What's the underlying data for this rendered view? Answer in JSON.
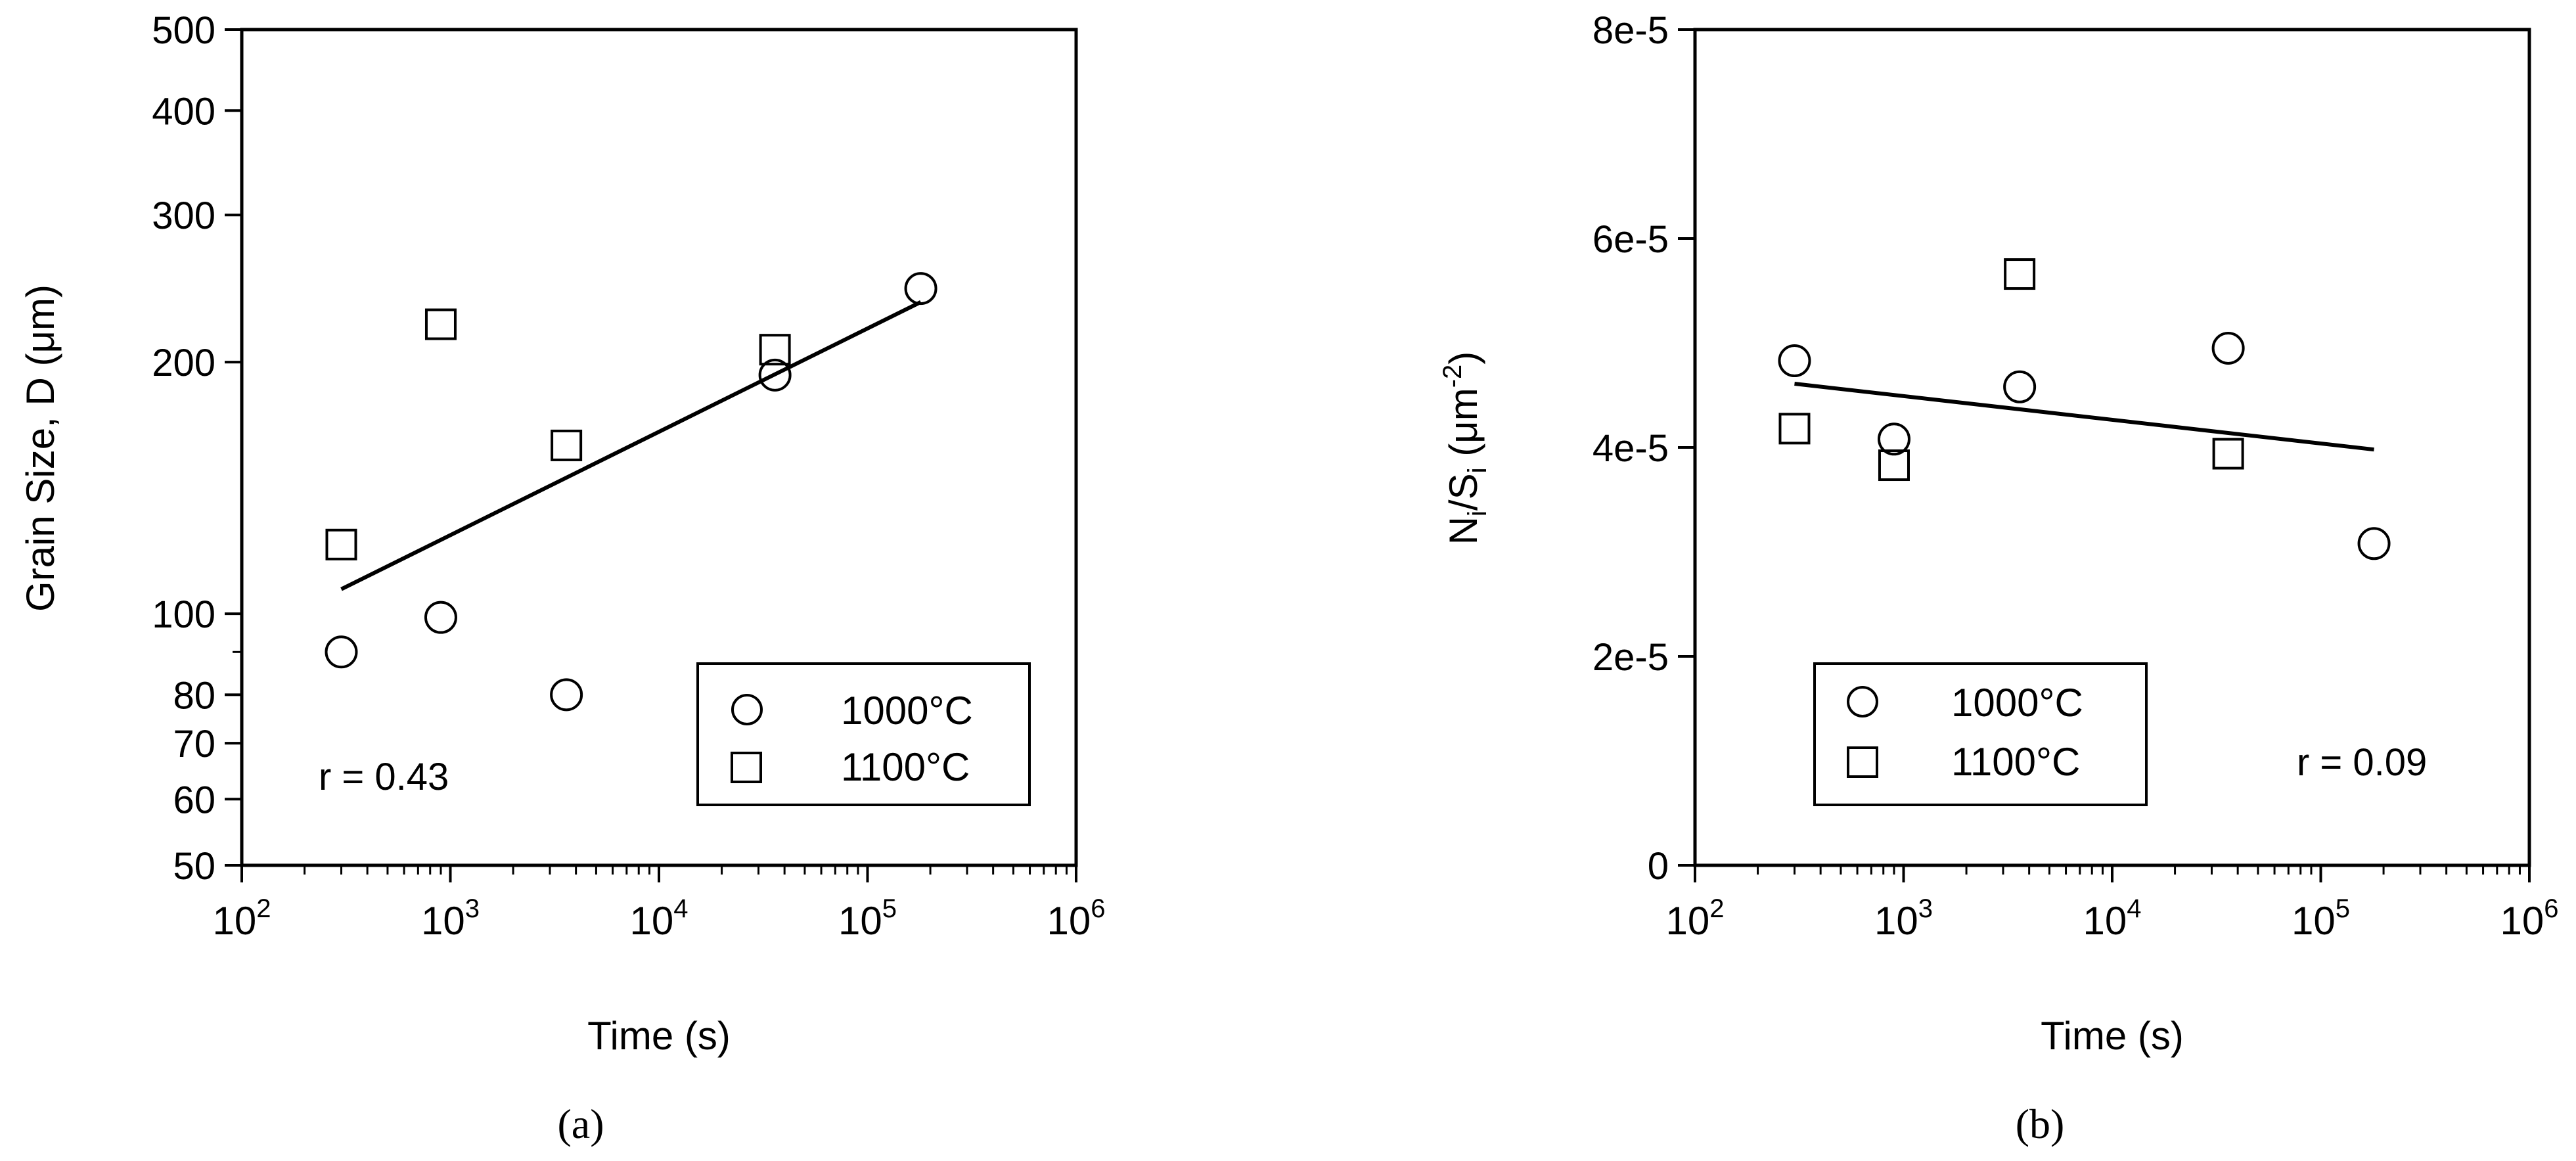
{
  "chart_data": [
    {
      "type": "scatter",
      "panel_label": "(a)",
      "xlabel": "Time (s)",
      "ylabel": "Grain Size, D (μm)",
      "x_scale": "log",
      "y_scale": "log",
      "xlim": [
        100,
        1000000
      ],
      "ylim": [
        50,
        500
      ],
      "x_ticks": [
        {
          "base": "10",
          "exp": "2",
          "value": 100
        },
        {
          "base": "10",
          "exp": "3",
          "value": 1000
        },
        {
          "base": "10",
          "exp": "4",
          "value": 10000
        },
        {
          "base": "10",
          "exp": "5",
          "value": 100000
        },
        {
          "base": "10",
          "exp": "6",
          "value": 1000000
        }
      ],
      "y_ticks": [
        {
          "label": "50",
          "value": 50
        },
        {
          "label": "60",
          "value": 60
        },
        {
          "label": "70",
          "value": 70
        },
        {
          "label": "80",
          "value": 80
        },
        {
          "label": "100",
          "value": 100
        },
        {
          "label": "200",
          "value": 200
        },
        {
          "label": "300",
          "value": 300
        },
        {
          "label": "400",
          "value": 400
        },
        {
          "label": "500",
          "value": 500
        }
      ],
      "series": [
        {
          "name": "1000°C",
          "marker": "circle",
          "x": [
            300,
            900,
            3600,
            36000,
            180000
          ],
          "y": [
            90,
            99,
            80,
            193,
            245
          ]
        },
        {
          "name": "1100°C",
          "marker": "square",
          "x": [
            300,
            900,
            3600,
            36000
          ],
          "y": [
            121,
            222,
            159,
            207
          ]
        }
      ],
      "fit_line": {
        "x": [
          300,
          180000
        ],
        "y": [
          107,
          236
        ]
      },
      "annotation": "r = 0.43",
      "legend_position": "bottom-right",
      "grid": false
    },
    {
      "type": "scatter",
      "panel_label": "(b)",
      "xlabel": "Time (s)",
      "ylabel": "Ni/Si (μm-2)",
      "ylabel_parts": {
        "n": "N",
        "n_sub": "i",
        "s": "/S",
        "s_sub": "i",
        "unit": " (μm",
        "unit_sup": "-2",
        "close": ")"
      },
      "x_scale": "log",
      "y_scale": "linear",
      "xlim": [
        100,
        1000000
      ],
      "ylim": [
        0,
        8e-05
      ],
      "x_ticks": [
        {
          "base": "10",
          "exp": "2",
          "value": 100
        },
        {
          "base": "10",
          "exp": "3",
          "value": 1000
        },
        {
          "base": "10",
          "exp": "4",
          "value": 10000
        },
        {
          "base": "10",
          "exp": "5",
          "value": 100000
        },
        {
          "base": "10",
          "exp": "6",
          "value": 1000000
        }
      ],
      "y_ticks": [
        {
          "label": "0",
          "value": 0
        },
        {
          "label": "2e-5",
          "value": 2e-05
        },
        {
          "label": "4e-5",
          "value": 4e-05
        },
        {
          "label": "6e-5",
          "value": 6e-05
        },
        {
          "label": "8e-5",
          "value": 8e-05
        }
      ],
      "series": [
        {
          "name": "1000°C",
          "marker": "circle",
          "x": [
            300,
            900,
            3600,
            36000,
            180000
          ],
          "y": [
            4.83e-05,
            4.08e-05,
            4.58e-05,
            4.95e-05,
            3.08e-05
          ]
        },
        {
          "name": "1100°C",
          "marker": "square",
          "x": [
            300,
            900,
            3600,
            36000
          ],
          "y": [
            4.18e-05,
            3.83e-05,
            5.66e-05,
            3.94e-05
          ]
        }
      ],
      "fit_line": {
        "x": [
          300,
          180000
        ],
        "y": [
          4.61e-05,
          3.98e-05
        ]
      },
      "annotation": "r = 0.09",
      "legend_position": "bottom-left",
      "grid": false
    }
  ]
}
